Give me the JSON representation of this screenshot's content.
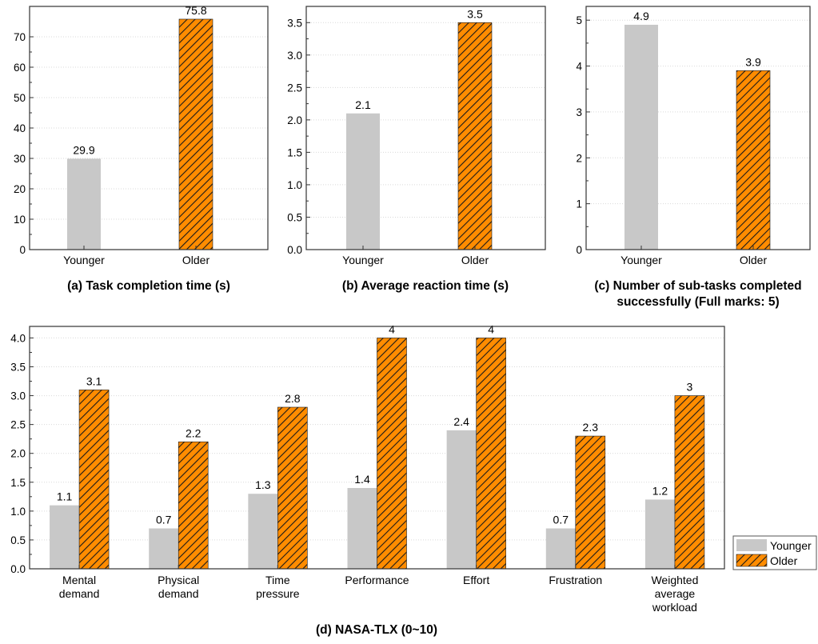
{
  "colors": {
    "younger": "#c8c8c8",
    "older": "#ff8c00",
    "hatch": "#1a1a1a",
    "frame": "#333333",
    "grid": "#d9d9d9"
  },
  "legend": {
    "items": [
      "Younger",
      "Older"
    ],
    "position": "right"
  },
  "chart_data": [
    {
      "id": "a",
      "type": "bar",
      "caption": [
        "(a) Task completion time (s)"
      ],
      "categories": [
        "Younger",
        "Older"
      ],
      "values": [
        29.9,
        75.8
      ],
      "value_labels": [
        "29.9",
        "75.8"
      ],
      "styles": [
        "younger",
        "older"
      ],
      "ylim": [
        0,
        80
      ],
      "yticks": [
        0,
        10,
        20,
        30,
        40,
        50,
        60,
        70
      ],
      "ytick_labels": [
        "0",
        "10",
        "20",
        "30",
        "40",
        "50",
        "60",
        "70"
      ],
      "grid": true
    },
    {
      "id": "b",
      "type": "bar",
      "caption": [
        "(b) Average reaction time (s)"
      ],
      "categories": [
        "Younger",
        "Older"
      ],
      "values": [
        2.1,
        3.5
      ],
      "value_labels": [
        "2.1",
        "3.5"
      ],
      "styles": [
        "younger",
        "older"
      ],
      "ylim": [
        0,
        3.75
      ],
      "yticks": [
        0,
        0.5,
        1.0,
        1.5,
        2.0,
        2.5,
        3.0,
        3.5
      ],
      "ytick_labels": [
        "0.0",
        "0.5",
        "1.0",
        "1.5",
        "2.0",
        "2.5",
        "3.0",
        "3.5"
      ],
      "grid": true
    },
    {
      "id": "c",
      "type": "bar",
      "caption": [
        "(c) Number of sub-tasks completed",
        "successfully (Full marks: 5)"
      ],
      "categories": [
        "Younger",
        "Older"
      ],
      "values": [
        4.9,
        3.9
      ],
      "value_labels": [
        "4.9",
        "3.9"
      ],
      "styles": [
        "younger",
        "older"
      ],
      "ylim": [
        0,
        5.3
      ],
      "yticks": [
        0,
        1,
        2,
        3,
        4,
        5
      ],
      "ytick_labels": [
        "0",
        "1",
        "2",
        "3",
        "4",
        "5"
      ],
      "grid": true
    },
    {
      "id": "d",
      "type": "bar",
      "caption": [
        "(d) NASA-TLX (0~10)"
      ],
      "categories": [
        [
          "Mental",
          "demand"
        ],
        [
          "Physical",
          "demand"
        ],
        [
          "Time",
          "pressure"
        ],
        [
          "Performance"
        ],
        [
          "Effort"
        ],
        [
          "Frustration"
        ],
        [
          "Weighted",
          "average",
          "workload"
        ]
      ],
      "series": [
        {
          "name": "Younger",
          "style": "younger",
          "values": [
            1.1,
            0.7,
            1.3,
            1.4,
            2.4,
            0.7,
            1.2
          ],
          "value_labels": [
            "1.1",
            "0.7",
            "1.3",
            "1.4",
            "2.4",
            "0.7",
            "1.2"
          ]
        },
        {
          "name": "Older",
          "style": "older",
          "values": [
            3.1,
            2.2,
            2.8,
            4.0,
            4.0,
            2.3,
            3.0
          ],
          "value_labels": [
            "3.1",
            "2.2",
            "2.8",
            "4",
            "4",
            "2.3",
            "3"
          ]
        }
      ],
      "ylim": [
        0,
        4.2
      ],
      "yticks": [
        0,
        0.5,
        1.0,
        1.5,
        2.0,
        2.5,
        3.0,
        3.5,
        4.0
      ],
      "ytick_labels": [
        "0.0",
        "0.5",
        "1.0",
        "1.5",
        "2.0",
        "2.5",
        "3.0",
        "3.5",
        "4.0"
      ],
      "grid": true
    }
  ]
}
